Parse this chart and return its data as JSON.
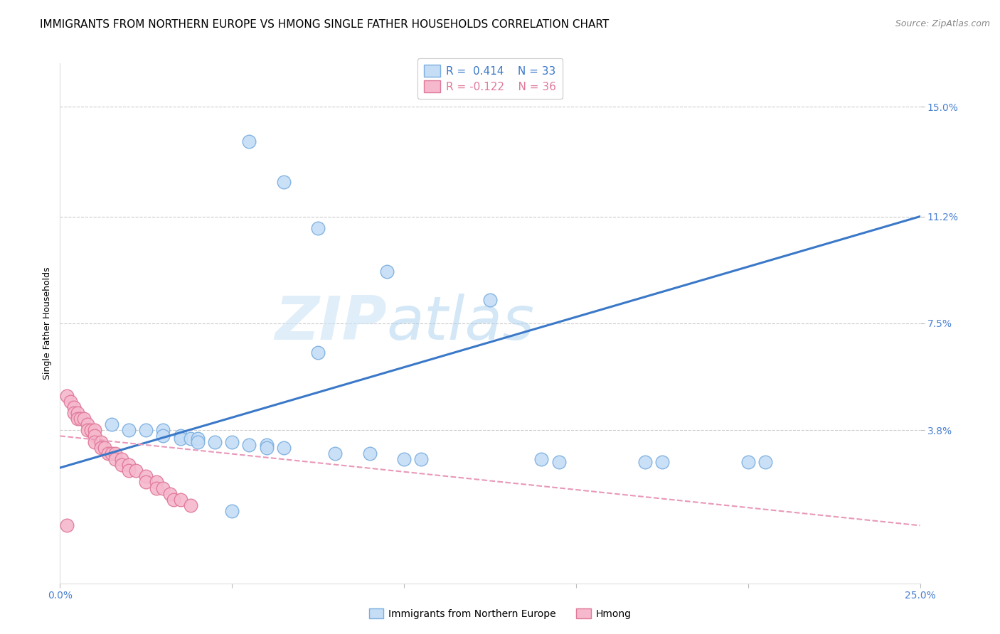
{
  "title": "IMMIGRANTS FROM NORTHERN EUROPE VS HMONG SINGLE FATHER HOUSEHOLDS CORRELATION CHART",
  "source": "Source: ZipAtlas.com",
  "ylabel": "Single Father Households",
  "ytick_labels": [
    "15.0%",
    "11.2%",
    "7.5%",
    "3.8%"
  ],
  "ytick_values": [
    0.15,
    0.112,
    0.075,
    0.038
  ],
  "xlim": [
    0.0,
    0.25
  ],
  "ylim": [
    -0.015,
    0.165
  ],
  "legend_blue_r": "R =  0.414",
  "legend_blue_n": "N = 33",
  "legend_pink_r": "R = -0.122",
  "legend_pink_n": "N = 36",
  "legend_label_blue": "Immigrants from Northern Europe",
  "legend_label_pink": "Hmong",
  "blue_scatter_x": [
    0.055,
    0.065,
    0.075,
    0.095,
    0.125,
    0.075,
    0.015,
    0.02,
    0.025,
    0.03,
    0.03,
    0.035,
    0.035,
    0.038,
    0.04,
    0.04,
    0.045,
    0.05,
    0.055,
    0.06,
    0.06,
    0.065,
    0.08,
    0.09,
    0.1,
    0.105,
    0.14,
    0.145,
    0.17,
    0.175,
    0.2,
    0.205,
    0.05
  ],
  "blue_scatter_y": [
    0.138,
    0.124,
    0.108,
    0.093,
    0.083,
    0.065,
    0.04,
    0.038,
    0.038,
    0.038,
    0.036,
    0.036,
    0.035,
    0.035,
    0.035,
    0.034,
    0.034,
    0.034,
    0.033,
    0.033,
    0.032,
    0.032,
    0.03,
    0.03,
    0.028,
    0.028,
    0.028,
    0.027,
    0.027,
    0.027,
    0.027,
    0.027,
    0.01
  ],
  "pink_scatter_x": [
    0.002,
    0.003,
    0.004,
    0.004,
    0.005,
    0.005,
    0.006,
    0.007,
    0.008,
    0.008,
    0.009,
    0.01,
    0.01,
    0.01,
    0.012,
    0.012,
    0.013,
    0.014,
    0.015,
    0.016,
    0.016,
    0.018,
    0.018,
    0.02,
    0.02,
    0.022,
    0.025,
    0.025,
    0.028,
    0.028,
    0.03,
    0.032,
    0.033,
    0.035,
    0.038,
    0.002
  ],
  "pink_scatter_y": [
    0.05,
    0.048,
    0.046,
    0.044,
    0.044,
    0.042,
    0.042,
    0.042,
    0.04,
    0.038,
    0.038,
    0.038,
    0.036,
    0.034,
    0.034,
    0.032,
    0.032,
    0.03,
    0.03,
    0.03,
    0.028,
    0.028,
    0.026,
    0.026,
    0.024,
    0.024,
    0.022,
    0.02,
    0.02,
    0.018,
    0.018,
    0.016,
    0.014,
    0.014,
    0.012,
    0.005
  ],
  "blue_line_x": [
    0.0,
    0.25
  ],
  "blue_line_y": [
    0.025,
    0.112
  ],
  "pink_line_x": [
    0.0,
    0.25
  ],
  "pink_line_y": [
    0.036,
    0.005
  ],
  "scatter_size": 180,
  "blue_color": "#c5ddf5",
  "blue_edge_color": "#7aaee0",
  "pink_color": "#f5b8cc",
  "pink_edge_color": "#e07898",
  "blue_line_color": "#3a78c8",
  "pink_line_color": "#e898b8",
  "grid_color": "#cccccc",
  "background_color": "#ffffff",
  "watermark_zip": "ZIP",
  "watermark_atlas": "atlas",
  "title_fontsize": 11,
  "axis_label_fontsize": 9,
  "tick_fontsize": 10,
  "source_fontsize": 9
}
